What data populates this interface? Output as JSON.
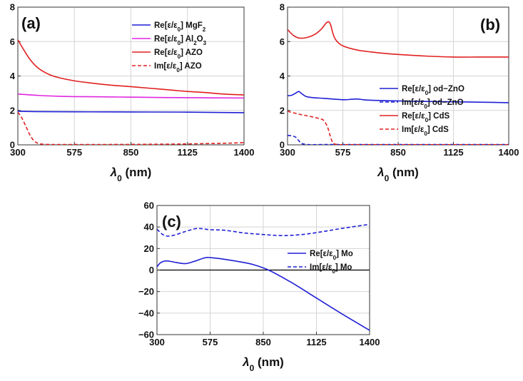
{
  "figure": {
    "colors": {
      "blue": "#1f1fd6",
      "magenta": "#e025e0",
      "red": "#e02020"
    },
    "panels": [
      {
        "id": "a",
        "label": "(a)",
        "xlabel": "λ0 (nm)",
        "xlim": [
          300,
          1400
        ],
        "ylim": [
          0,
          8
        ],
        "xticks": [
          300,
          575,
          850,
          1125,
          1400
        ],
        "yticks": [
          0,
          2,
          4,
          6,
          8
        ],
        "legend_position": "top-right",
        "series": [
          {
            "name": "Re[ε/ε0] MgF2",
            "legend_text": "Re[ε/ε₀] MgF₂",
            "color": "blue",
            "dash": false,
            "x": [
              300,
              400,
              575,
              850,
              1125,
              1300,
              1400
            ],
            "y": [
              1.95,
              1.93,
              1.92,
              1.91,
              1.9,
              1.88,
              1.87
            ]
          },
          {
            "name": "Re[ε/ε0] Al2O3",
            "legend_text": "Re[ε/ε₀] Al₂O₃",
            "color": "magenta",
            "dash": false,
            "x": [
              300,
              400,
              500,
              575,
              700,
              850,
              1000,
              1125,
              1250,
              1400
            ],
            "y": [
              2.95,
              2.87,
              2.82,
              2.8,
              2.79,
              2.77,
              2.75,
              2.74,
              2.73,
              2.72
            ]
          },
          {
            "name": "Re[ε/ε0] AZO",
            "legend_text": "Re[ε/ε₀] AZO",
            "color": "red",
            "dash": false,
            "x": [
              300,
              330,
              360,
              400,
              450,
              500,
              575,
              650,
              750,
              850,
              950,
              1050,
              1125,
              1200,
              1300,
              1400
            ],
            "y": [
              6.1,
              5.5,
              4.95,
              4.45,
              4.1,
              3.9,
              3.72,
              3.6,
              3.47,
              3.38,
              3.28,
              3.18,
              3.1,
              3.05,
              2.95,
              2.9
            ]
          },
          {
            "name": "Im[ε/ε0] AZO",
            "legend_text": "Im[ε/ε₀] AZO",
            "color": "red",
            "dash": true,
            "x": [
              300,
              320,
              340,
              360,
              380,
              400,
              430,
              500,
              700,
              900,
              1100,
              1300,
              1400
            ],
            "y": [
              1.9,
              1.55,
              1.05,
              0.55,
              0.22,
              0.08,
              0.03,
              0.02,
              0.02,
              0.03,
              0.05,
              0.09,
              0.13
            ]
          }
        ]
      },
      {
        "id": "b",
        "label": "(b)",
        "xlabel": "λ0 (nm)",
        "xlim": [
          300,
          1400
        ],
        "ylim": [
          0,
          8
        ],
        "xticks": [
          300,
          575,
          850,
          1125,
          1400
        ],
        "yticks": [
          0,
          2,
          4,
          6,
          8
        ],
        "legend_position": "bottom-right",
        "series": [
          {
            "name": "Re[ε/ε0] od-ZnO",
            "legend_text": "Re[ε/ε₀] od−ZnO",
            "color": "blue",
            "dash": false,
            "x": [
              300,
              320,
              340,
              355,
              370,
              390,
              420,
              480,
              575,
              620,
              650,
              700,
              850,
              1000,
              1125,
              1250,
              1400
            ],
            "y": [
              2.85,
              2.88,
              3.0,
              3.1,
              2.98,
              2.82,
              2.75,
              2.7,
              2.62,
              2.65,
              2.66,
              2.6,
              2.55,
              2.52,
              2.5,
              2.48,
              2.45
            ]
          },
          {
            "name": "Im[ε/ε0] od-ZnO",
            "legend_text": "Im[ε/ε₀] od−ZnO",
            "color": "blue",
            "dash": true,
            "x": [
              300,
              320,
              340,
              355,
              370,
              390,
              420,
              500,
              700,
              1000,
              1400
            ],
            "y": [
              0.55,
              0.52,
              0.45,
              0.25,
              0.08,
              0.03,
              0.01,
              0.02,
              0.02,
              0.02,
              0.02
            ]
          },
          {
            "name": "Re[ε/ε0] CdS",
            "legend_text": "Re[ε/ε₀] CdS",
            "color": "red",
            "dash": false,
            "x": [
              300,
              330,
              360,
              400,
              440,
              470,
              490,
              505,
              515,
              525,
              540,
              575,
              650,
              750,
              850,
              1000,
              1125,
              1250,
              1400
            ],
            "y": [
              6.7,
              6.35,
              6.2,
              6.25,
              6.45,
              6.75,
              7.05,
              7.15,
              6.95,
              6.5,
              6.1,
              5.75,
              5.5,
              5.35,
              5.25,
              5.15,
              5.1,
              5.1,
              5.1
            ]
          },
          {
            "name": "Im[ε/ε0] CdS",
            "legend_text": "Im[ε/ε₀] CdS",
            "color": "red",
            "dash": true,
            "x": [
              300,
              350,
              400,
              450,
              480,
              500,
              510,
              520,
              530,
              545,
              575,
              700,
              1000,
              1400
            ],
            "y": [
              1.95,
              1.8,
              1.68,
              1.55,
              1.42,
              1.0,
              0.6,
              0.25,
              0.08,
              0.02,
              0.01,
              0.01,
              0.01,
              0.01
            ]
          }
        ]
      },
      {
        "id": "c",
        "label": "(c)",
        "xlabel": "λ0 (nm)",
        "xlim": [
          300,
          1400
        ],
        "ylim": [
          -60,
          60
        ],
        "xticks": [
          300,
          575,
          850,
          1125,
          1400
        ],
        "yticks": [
          -60,
          -40,
          -20,
          0,
          20,
          40,
          60
        ],
        "legend_position": "top-right",
        "series": [
          {
            "name": "Re[ε/ε0] Mo",
            "legend_text": "Re[ε/ε₀] Mo",
            "color": "blue",
            "dash": false,
            "x": [
              300,
              320,
              350,
              400,
              450,
              500,
              550,
              580,
              650,
              750,
              800,
              850,
              900,
              1000,
              1125,
              1250,
              1400
            ],
            "y": [
              3,
              7,
              8.5,
              7,
              6,
              8.5,
              11.5,
              11.5,
              10,
              7,
              5,
              2,
              -2,
              -12,
              -26,
              -40,
              -56
            ]
          },
          {
            "name": "Im[ε/ε0] Mo",
            "legend_text": "Im[ε/ε₀] Mo",
            "color": "blue",
            "dash": true,
            "x": [
              300,
              330,
              360,
              400,
              450,
              500,
              530,
              575,
              650,
              750,
              850,
              950,
              1050,
              1150,
              1250,
              1400
            ],
            "y": [
              38,
              33,
              31.5,
              33,
              36,
              38.5,
              38.5,
              37.5,
              37,
              34.5,
              33,
              32,
              33,
              35.5,
              38.5,
              42.5
            ]
          }
        ]
      }
    ]
  }
}
